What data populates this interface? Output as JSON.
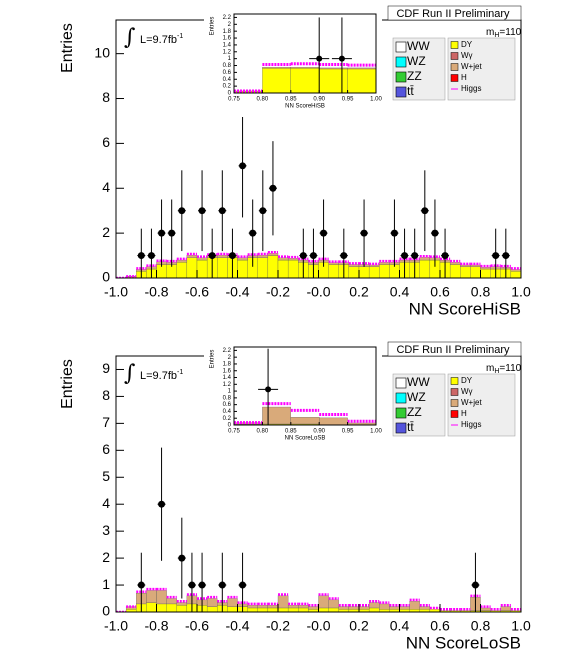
{
  "chart_data": [
    {
      "type": "histogram",
      "title": "CDF Run II Preliminary",
      "xlabel": "NN ScoreHiSB",
      "ylabel": "Entries",
      "integral": "∫",
      "luminosity": [
        "L=9.7fb",
        "-1"
      ],
      "mass": [
        "m",
        "H",
        "=110"
      ],
      "bins": [
        -1,
        -0.95,
        -0.9,
        -0.85,
        -0.8,
        -0.75,
        -0.7,
        -0.65,
        -0.6,
        -0.55,
        -0.5,
        -0.45,
        -0.4,
        -0.35,
        -0.3,
        -0.25,
        -0.2,
        -0.15,
        -0.1,
        -0.05,
        0,
        0.05,
        0.1,
        0.15,
        0.2,
        0.25,
        0.3,
        0.35,
        0.4,
        0.45,
        0.5,
        0.55,
        0.6,
        0.65,
        0.7,
        0.75,
        0.8,
        0.85,
        0.9,
        0.95,
        1
      ],
      "xlim": [
        -1,
        1
      ],
      "ylim": [
        0,
        11.5
      ],
      "xticks": [
        {
          "value": -1,
          "label": "-1.0"
        },
        -0.8,
        -0.6,
        -0.4,
        -0.2,
        {
          "value": 0,
          "label": "-0.0"
        },
        0.2,
        0.4,
        0.6,
        0.8,
        {
          "value": 1,
          "label": "1.0"
        }
      ],
      "yticks": [
        0,
        2,
        4,
        6,
        8,
        10
      ],
      "series": [
        {
          "name": "WW",
          "color": "#ffffff"
        },
        {
          "name": "WZ",
          "color": "#00ffff"
        },
        {
          "name": "ZZ",
          "color": "#33cc33"
        },
        {
          "name": "tt̄",
          "color": "#5555dd"
        },
        {
          "name": "DY",
          "color": "#ffff00",
          "values": [
            0,
            0.05,
            0.3,
            0.4,
            0.6,
            0.6,
            0.7,
            0.9,
            0.8,
            0.9,
            0.9,
            0.9,
            0.8,
            0.9,
            0.9,
            1.0,
            0.8,
            0.8,
            0.7,
            0.6,
            0.7,
            0.6,
            0.6,
            0.5,
            0.5,
            0.5,
            0.6,
            0.6,
            0.7,
            0.7,
            0.8,
            0.8,
            0.7,
            0.6,
            0.5,
            0.5,
            0.4,
            0.4,
            0.4,
            0.3
          ]
        },
        {
          "name": "Wγ",
          "color": "#cc6666"
        },
        {
          "name": "W+jet",
          "color": "#d9aa7a",
          "values": [
            0,
            0.02,
            0.08,
            0.1,
            0.12,
            0.1,
            0.1,
            0.12,
            0.1,
            0.1,
            0.12,
            0.1,
            0.1,
            0.1,
            0.12,
            0.1,
            0.1,
            0.08,
            0.1,
            0.1,
            0.1,
            0.08,
            0.08,
            0.1,
            0.1,
            0.08,
            0.1,
            0.1,
            0.1,
            0.1,
            0.12,
            0.1,
            0.1,
            0.1,
            0.08,
            0.08,
            0.08,
            0.1,
            0.08,
            0.08
          ]
        },
        {
          "name": "H",
          "color": "#ff0000"
        },
        {
          "name": "Higgs",
          "color": "#ff00ff",
          "overlay": true,
          "values": [
            0,
            0,
            0.05,
            0.05,
            0.05,
            0.05,
            0.05,
            0.05,
            0.05,
            0.05,
            0.05,
            0.05,
            0.05,
            0.05,
            0.05,
            0.05,
            0.05,
            0.05,
            0.05,
            0.05,
            0.05,
            0.05,
            0.05,
            0.05,
            0.05,
            0.05,
            0.05,
            0.05,
            0.05,
            0.05,
            0.05,
            0.05,
            0.05,
            0.05,
            0.05,
            0.05,
            0.05,
            0.05,
            0.05,
            0.05
          ]
        }
      ],
      "points": {
        "x": [
          -0.875,
          -0.825,
          -0.775,
          -0.725,
          -0.675,
          -0.575,
          -0.525,
          -0.475,
          -0.425,
          -0.375,
          -0.325,
          -0.275,
          -0.225,
          -0.075,
          -0.025,
          0.025,
          0.125,
          0.225,
          0.375,
          0.425,
          0.475,
          0.525,
          0.575,
          0.625,
          0.875,
          0.925
        ],
        "values": [
          1,
          1,
          2,
          2,
          3,
          3,
          1,
          3,
          1,
          5,
          2,
          3,
          4,
          1,
          1,
          2,
          1,
          2,
          2,
          1,
          1,
          3,
          2,
          1,
          1,
          1
        ],
        "errors": [
          1.2,
          1.2,
          1.5,
          1.5,
          1.8,
          1.8,
          1.2,
          1.8,
          1.2,
          2.3,
          1.5,
          1.8,
          2.1,
          1.2,
          1.2,
          1.5,
          1.2,
          1.5,
          1.5,
          1.2,
          1.2,
          1.8,
          1.5,
          1.2,
          1.2,
          1.2
        ]
      }
    },
    {
      "type": "histogram",
      "xlabel": "NN ScoreHiSB",
      "ylabel": "Entries",
      "bins": [
        0.75,
        0.8,
        0.85,
        0.9,
        0.95,
        1
      ],
      "xlim": [
        0.75,
        1
      ],
      "ylim": [
        0,
        2.3
      ],
      "xticks": [
        0.75,
        {
          "value": 0.8,
          "label": "0.80"
        },
        0.85,
        {
          "value": 0.9,
          "label": "0.90"
        },
        0.95,
        {
          "value": 1,
          "label": "1.00"
        }
      ],
      "yticks": [
        0,
        0.2,
        0.4,
        0.6,
        0.8,
        1,
        1.2,
        1.4,
        1.6,
        1.8,
        2,
        2.2
      ],
      "series": [
        {
          "color": "#ffff00",
          "values": [
            0.05,
            0.72,
            0.72,
            0.7,
            0.7
          ]
        },
        {
          "color": "#d9aa7a",
          "values": [
            0.01,
            0.03,
            0.03,
            0.03,
            0.03
          ]
        },
        {
          "color": "#ff00ff",
          "overlay": true,
          "values": [
            0,
            0.08,
            0.1,
            0.1,
            0.08
          ]
        }
      ],
      "points": {
        "x": [
          0.9,
          0.94
        ],
        "values": [
          1,
          1
        ],
        "errors": [
          1.2,
          1.2
        ]
      }
    },
    {
      "type": "histogram",
      "title": "CDF Run II Preliminary",
      "xlabel": "NN ScoreLoSB",
      "ylabel": "Entries",
      "integral": "∫",
      "luminosity": [
        "L=9.7fb",
        "-1"
      ],
      "mass": [
        "m",
        "H",
        "=110"
      ],
      "bins": [
        -1,
        -0.95,
        -0.9,
        -0.85,
        -0.8,
        -0.75,
        -0.7,
        -0.65,
        -0.6,
        -0.55,
        -0.5,
        -0.45,
        -0.4,
        -0.35,
        -0.3,
        -0.25,
        -0.2,
        -0.15,
        -0.1,
        -0.05,
        0,
        0.05,
        0.1,
        0.15,
        0.2,
        0.25,
        0.3,
        0.35,
        0.4,
        0.45,
        0.5,
        0.55,
        0.6,
        0.65,
        0.7,
        0.75,
        0.8,
        0.85,
        0.9,
        0.95,
        1
      ],
      "xlim": [
        -1,
        1
      ],
      "ylim": [
        0,
        9.5
      ],
      "xticks": [
        {
          "value": -1,
          "label": "-1.0"
        },
        -0.8,
        -0.6,
        -0.4,
        -0.2,
        {
          "value": 0,
          "label": "-0.0"
        },
        0.2,
        0.4,
        0.6,
        0.8,
        {
          "value": 1,
          "label": "1.0"
        }
      ],
      "yticks": [
        0,
        1,
        2,
        3,
        4,
        5,
        6,
        7,
        8,
        9
      ],
      "series": [
        {
          "name": "WW",
          "color": "#ffffff"
        },
        {
          "name": "WZ",
          "color": "#00ffff"
        },
        {
          "name": "ZZ",
          "color": "#33cc33"
        },
        {
          "name": "tt̄",
          "color": "#5555dd"
        },
        {
          "name": "DY",
          "color": "#ffff00",
          "values": [
            0,
            0.1,
            0.3,
            0.35,
            0.3,
            0.3,
            0.25,
            0.3,
            0.25,
            0.2,
            0.25,
            0.2,
            0.2,
            0.15,
            0.15,
            0.15,
            0.15,
            0.15,
            0.15,
            0.1,
            0.15,
            0.15,
            0.1,
            0.1,
            0.1,
            0.15,
            0.1,
            0.1,
            0.1,
            0.1,
            0.1,
            0.1,
            0.05,
            0.05,
            0.05,
            0.05,
            0.05,
            0.05,
            0.05,
            0.05
          ]
        },
        {
          "name": "Wγ",
          "color": "#cc6666"
        },
        {
          "name": "W+jet",
          "color": "#d9aa7a",
          "values": [
            0,
            0.1,
            0.4,
            0.45,
            0.5,
            0.2,
            0.1,
            0.3,
            0.2,
            0.3,
            0.1,
            0.3,
            0.1,
            0.1,
            0.1,
            0.1,
            0.45,
            0.1,
            0.1,
            0.1,
            0.45,
            0.3,
            0.1,
            0.1,
            0.1,
            0.2,
            0.2,
            0.1,
            0.1,
            0.3,
            0.1,
            0,
            0,
            0,
            0,
            0.5,
            0.1,
            0,
            0.15,
            0
          ]
        },
        {
          "name": "H",
          "color": "#ff0000"
        },
        {
          "name": "Higgs",
          "color": "#ff00ff",
          "overlay": true,
          "values": [
            0,
            0,
            0.05,
            0.05,
            0.05,
            0.05,
            0.05,
            0.05,
            0.05,
            0.05,
            0.05,
            0.05,
            0.05,
            0.05,
            0.05,
            0.05,
            0.05,
            0.05,
            0.05,
            0.05,
            0.05,
            0.05,
            0.05,
            0.05,
            0.05,
            0.05,
            0.05,
            0.05,
            0.05,
            0.05,
            0.05,
            0.05,
            0.05,
            0.05,
            0.05,
            0.05,
            0.05,
            0.05,
            0.05,
            0.05
          ]
        }
      ],
      "points": {
        "x": [
          -0.875,
          -0.775,
          -0.675,
          -0.625,
          -0.575,
          -0.475,
          -0.375,
          0.775
        ],
        "values": [
          1,
          4,
          2,
          1,
          1,
          1,
          1,
          1
        ],
        "errors": [
          1.2,
          2.1,
          1.5,
          1.2,
          1.2,
          1.2,
          1.2,
          1.2
        ]
      }
    },
    {
      "type": "histogram",
      "xlabel": "NN ScoreLoSB",
      "ylabel": "Entries",
      "bins": [
        0.75,
        0.8,
        0.85,
        0.9,
        0.95,
        1
      ],
      "xlim": [
        0.75,
        1
      ],
      "ylim": [
        0,
        2.3
      ],
      "xticks": [
        0.75,
        {
          "value": 0.8,
          "label": "0.80"
        },
        0.85,
        {
          "value": 0.9,
          "label": "0.90"
        },
        0.95,
        {
          "value": 1,
          "label": "1.00"
        }
      ],
      "yticks": [
        0,
        0.2,
        0.4,
        0.6,
        0.8,
        1,
        1.2,
        1.4,
        1.6,
        1.8,
        2,
        2.2
      ],
      "series": [
        {
          "color": "#ffff00",
          "values": [
            0.02,
            0.03,
            0.03,
            0.01,
            0.01
          ]
        },
        {
          "color": "#d9aa7a",
          "values": [
            0.05,
            0.5,
            0.2,
            0.2,
            0.05
          ]
        },
        {
          "color": "#ff00ff",
          "overlay": true,
          "values": [
            0,
            0.1,
            0.2,
            0.1,
            0.05
          ]
        }
      ],
      "points": {
        "x": [
          0.81
        ],
        "values": [
          1.05
        ],
        "errors": [
          1.2
        ]
      }
    }
  ]
}
